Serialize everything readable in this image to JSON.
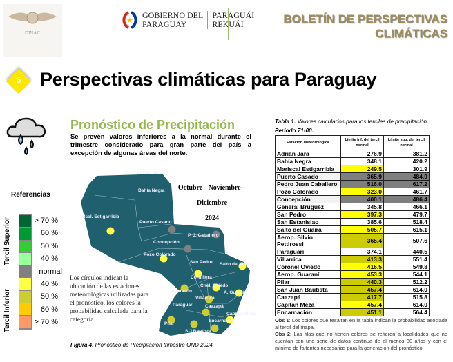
{
  "header": {
    "dinac_logo_text": "DINAC",
    "gov_line1": "GOBIERNO DEL",
    "gov_line2": "PARAGUAY",
    "gov_line3": "PARAGUÁI",
    "gov_line4": "REKUÁI",
    "bulletin_line1": "BOLETÍN DE PERSPECTIVAS",
    "bulletin_line2": "CLIMÁTICAS"
  },
  "section": {
    "number": "5",
    "title": "Perspectivas climáticas para Paraguay"
  },
  "forecast": {
    "icon": "rain-cloud-icon",
    "title": "Pronóstico de Precipitación",
    "description": "Se prevén valores inferiores a la normal durante el trimestre considerado para gran parte del país a excepción de algunas áreas del norte.",
    "period_line1": "Octubre -  Noviembre – Diciembre",
    "period_line2": "2024",
    "note": "Los círculos indican la ubicación de las estaciones meteorológicas utilizadas para el pronóstico, los colores la probabilidad calculada para la categoría.",
    "caption_bold": "Figura 4",
    "caption": ". Pronóstico de Precipitación trimestre OND 2024."
  },
  "legend": {
    "title": "Referencias",
    "upper_label": "Tercil Superior",
    "lower_label": "Tercil Inferior",
    "items": [
      {
        "label": "> 70 %",
        "color": "#006633"
      },
      {
        "label": "60 %",
        "color": "#009933"
      },
      {
        "label": "50 %",
        "color": "#33cc33"
      },
      {
        "label": "40 %",
        "color": "#99ff99"
      },
      {
        "label": "normal",
        "color": "#808080"
      },
      {
        "label": "40  %",
        "color": "#ffff44"
      },
      {
        "label": "50  %",
        "color": "#cccc33"
      },
      {
        "label": "60 %",
        "color": "#ffcc00"
      },
      {
        "label": "> 70 %",
        "color": "#ff9966"
      }
    ]
  },
  "map": {
    "region_color": "#1f5f6e",
    "stations": [
      {
        "label": "Adrián Jara",
        "color": ""
      },
      {
        "label": "Bahía Negra",
        "color": ""
      },
      {
        "label": "Mcal. Estigarribia",
        "color": "#ffff44"
      },
      {
        "label": "Puerto Casado",
        "color": "#808080"
      },
      {
        "label": "P. J. Caballero",
        "color": "#808080"
      },
      {
        "label": "Concepción",
        "color": "#808080"
      },
      {
        "label": "Pozo Colorado",
        "color": "#ffff44"
      },
      {
        "label": "San Pedro",
        "color": "#ffff44"
      },
      {
        "label": "Salto del Guairá",
        "color": "#ffff44"
      },
      {
        "label": "Asunción",
        "color": "#cccc33"
      },
      {
        "label": "Cnel. Oviedo",
        "color": "#ffff44"
      },
      {
        "label": "A. Guaraní",
        "color": "#ffff44"
      },
      {
        "label": "Villarrica",
        "color": "#cccc33"
      },
      {
        "label": "Paraguarí",
        "color": ""
      },
      {
        "label": "Caazapá",
        "color": "#cccc33"
      },
      {
        "label": "Capitán Meza",
        "color": "#ffff44"
      },
      {
        "label": "Pilar",
        "color": "#cccc33"
      },
      {
        "label": "S.J.Bautista",
        "color": "#cccc33"
      },
      {
        "label": "Encarnación",
        "color": "#cccc33"
      },
      {
        "label": "Cordillera",
        "color": ""
      }
    ]
  },
  "table": {
    "caption_bold": "Tabla 1.",
    "caption": " Valores calculados para los terciles de precipitación.",
    "period": "Periodo 71-00.",
    "headers": [
      "Estación Meteorológica",
      "Límite inf. del tercil normal",
      "Límite sup. del tercil normal"
    ],
    "rows": [
      [
        "Adrián Jara",
        "276.9",
        "381.2",
        ""
      ],
      [
        "Bahía Negra",
        "348.1",
        "420.2",
        ""
      ],
      [
        "Mariscal Estigarribia",
        "249.5",
        "301.9",
        "#ffff00"
      ],
      [
        "Puerto Casado",
        "365.9",
        "484.9",
        "#7f7f7f"
      ],
      [
        "Pedro Juan Caballero",
        "516.0",
        "617.2",
        "#7f7f7f"
      ],
      [
        "Pozo Colorado",
        "323.0",
        "461.7",
        "#ffff00"
      ],
      [
        "Concepción",
        "400.1",
        "486.4",
        "#7f7f7f"
      ],
      [
        "General Bruguéz",
        "345.8",
        "466.1",
        ""
      ],
      [
        "San Pedro",
        "397.3",
        "479.7",
        "#ffff00"
      ],
      [
        "San Estanislao",
        "385.6",
        "518.4",
        ""
      ],
      [
        "Salto del Guairá",
        "505.7",
        "615.1",
        "#ffff00"
      ],
      [
        "Aerop. Silvio Pettirossi",
        "365.4",
        "507.6",
        "#cccc00"
      ],
      [
        "Paraguarí",
        "374.1",
        "440.5",
        ""
      ],
      [
        "Villarrica",
        "413.3",
        "551.4",
        "#cccc00"
      ],
      [
        "Coronel Oviedo",
        "416.5",
        "549.8",
        "#ffff00"
      ],
      [
        "Aerop. Guaraní",
        "453.3",
        "544.1",
        "#ffff00"
      ],
      [
        "Pilar",
        "440.3",
        "512.2",
        "#cccc00"
      ],
      [
        "San Juan Bautista",
        "457.4",
        "614.0",
        "#cccc00"
      ],
      [
        "Caazapá",
        "417.7",
        "515.8",
        "#cccc00"
      ],
      [
        "Capitán Meza",
        "457.4",
        "614.0",
        "#ffff00"
      ],
      [
        "Encarnación",
        "451.1",
        "564.4",
        "#cccc00"
      ]
    ],
    "obs1_bold": "Obs 1",
    "obs1": ": Los colores que resaltan en la tabla indican la probabilidad asociada al tercil del mapa.",
    "obs2_bold": "Obs 2",
    "obs2": ": Las filas que no tienen colores se refieren a localidades que no cuentan con una serie de datos continua de al menos 30 años y con el mínimo de faltantes necesarias para la generación del pronóstico."
  }
}
